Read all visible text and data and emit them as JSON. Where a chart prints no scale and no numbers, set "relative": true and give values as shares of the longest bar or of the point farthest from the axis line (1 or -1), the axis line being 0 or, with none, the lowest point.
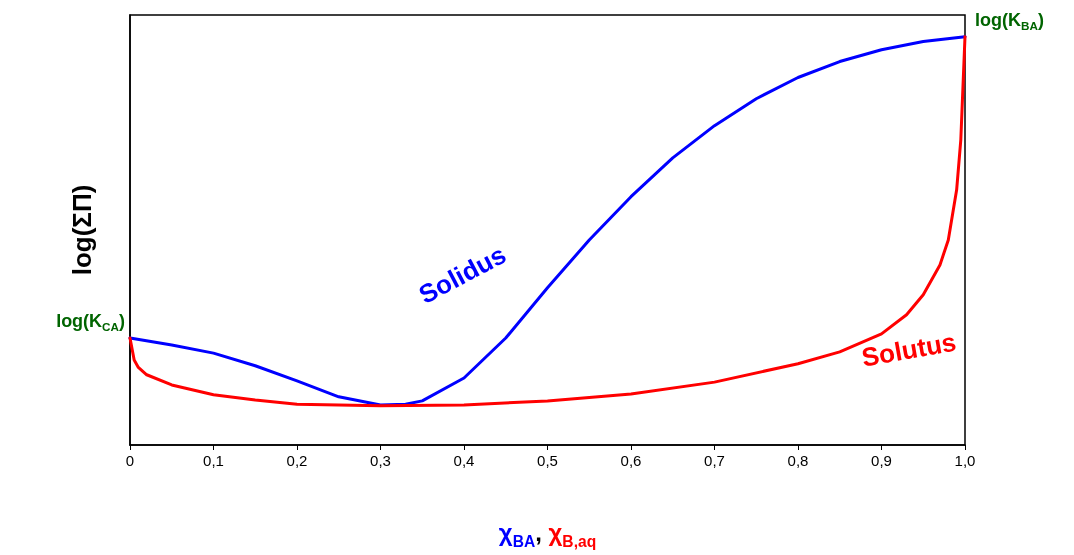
{
  "chart_data": {
    "type": "line",
    "relative": true,
    "xlabel": "χ$_{BA}$, χ$_{B,aq}$",
    "ylabel": "log(ΣΠ)",
    "xlim": [
      0,
      1
    ],
    "xticks": [
      0,
      {
        "value": 0.1,
        "label": "0,1"
      },
      {
        "value": 0.2,
        "label": "0,2"
      },
      {
        "value": 0.3,
        "label": "0,3"
      },
      {
        "value": 0.4,
        "label": "0,4"
      },
      {
        "value": 0.5,
        "label": "0,5"
      },
      {
        "value": 0.6,
        "label": "0,6"
      },
      {
        "value": 0.7,
        "label": "0,7"
      },
      {
        "value": 0.8,
        "label": "0,8"
      },
      {
        "value": 0.9,
        "label": "0,9"
      },
      {
        "value": 1,
        "label": "1,0"
      }
    ],
    "grid": false,
    "marker": "none",
    "line_style": "solid",
    "tick_labels": "x",
    "series": [
      {
        "name": "Solidus",
        "color": "#0000ff",
        "x": [
          0,
          0.05,
          0.1,
          0.15,
          0.2,
          0.25,
          0.3,
          0.33,
          0.35,
          0.4,
          0.45,
          0.5,
          0.55,
          0.6,
          0.65,
          0.7,
          0.75,
          0.8,
          0.85,
          0.9,
          0.95,
          1
        ],
        "values": [
          0.262,
          0.245,
          0.225,
          0.194,
          0.157,
          0.118,
          0.098,
          0.1,
          0.108,
          0.164,
          0.262,
          0.385,
          0.502,
          0.608,
          0.703,
          0.782,
          0.848,
          0.9,
          0.939,
          0.968,
          0.988,
          1
        ]
      },
      {
        "name": "Solutus",
        "color": "#ff0000",
        "x": [
          0,
          0.005,
          0.01,
          0.02,
          0.05,
          0.1,
          0.15,
          0.2,
          0.3,
          0.4,
          0.5,
          0.6,
          0.7,
          0.8,
          0.85,
          0.9,
          0.93,
          0.95,
          0.97,
          0.98,
          0.99,
          0.995,
          1
        ],
        "values": [
          0.262,
          0.208,
          0.19,
          0.172,
          0.147,
          0.123,
          0.11,
          0.1,
          0.096,
          0.098,
          0.108,
          0.125,
          0.154,
          0.199,
          0.228,
          0.272,
          0.319,
          0.368,
          0.441,
          0.502,
          0.625,
          0.748,
          1
        ]
      }
    ],
    "annotations": [
      {
        "text": "log(K$_{CA}$)",
        "x": 0,
        "y": 0.262
      },
      {
        "text": "log(K$_{BA}$)",
        "x": 1,
        "y": 1
      }
    ]
  }
}
